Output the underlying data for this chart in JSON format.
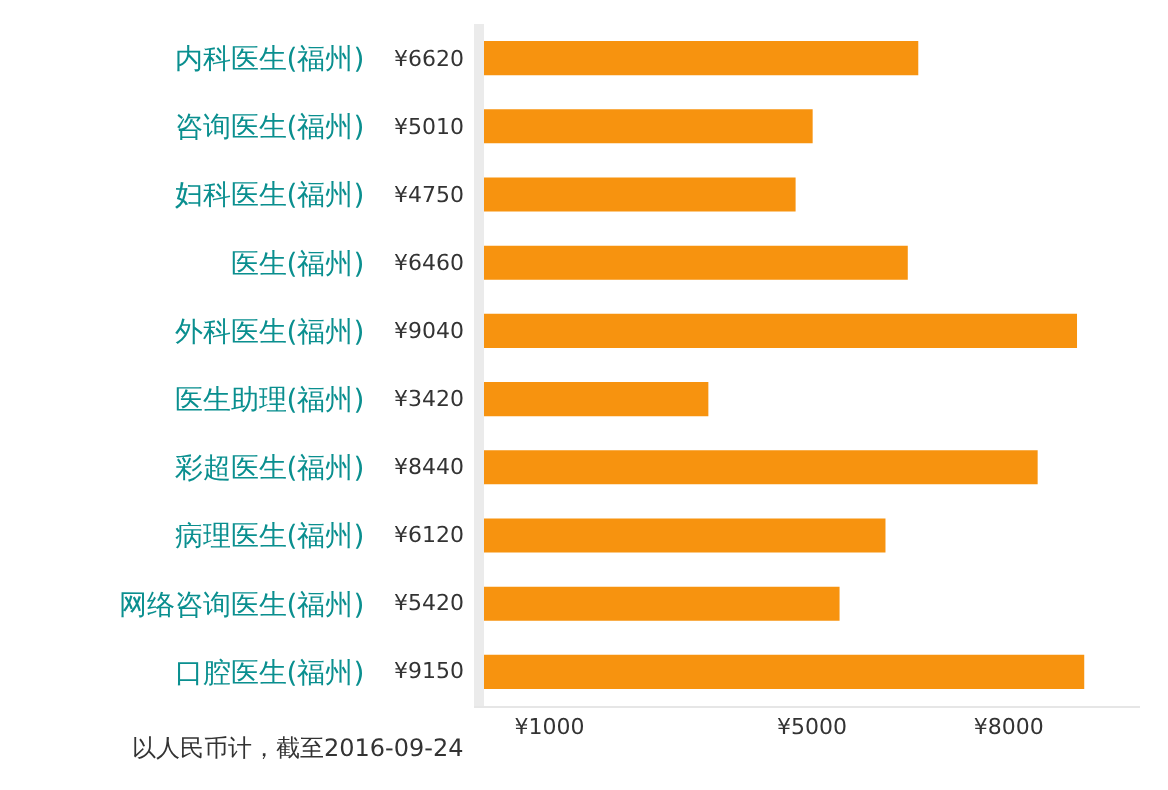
{
  "chart_data": {
    "type": "bar",
    "orientation": "horizontal",
    "categories": [
      "内科医生(福州)",
      "咨询医生(福州)",
      "妇科医生(福州)",
      "医生(福州)",
      "外科医生(福州)",
      "医生助理(福州)",
      "彩超医生(福州)",
      "病理医生(福州)",
      "网络咨询医生(福州)",
      "口腔医生(福州)"
    ],
    "values": [
      6620,
      5010,
      4750,
      6460,
      9040,
      3420,
      8440,
      6120,
      5420,
      9150
    ],
    "value_labels": [
      "¥6620",
      "¥5010",
      "¥4750",
      "¥6460",
      "¥9040",
      "¥3420",
      "¥8440",
      "¥6120",
      "¥5420",
      "¥9150"
    ],
    "color": "#f7930f",
    "xlim": [
      0,
      10000
    ],
    "xticks": [
      {
        "value": 1000,
        "label": "¥1000"
      },
      {
        "value": 5000,
        "label": "¥5000"
      },
      {
        "value": 8000,
        "label": "¥8000"
      }
    ],
    "annotations": [
      "以人民币计，截至2016-09-24"
    ],
    "legend": false
  }
}
